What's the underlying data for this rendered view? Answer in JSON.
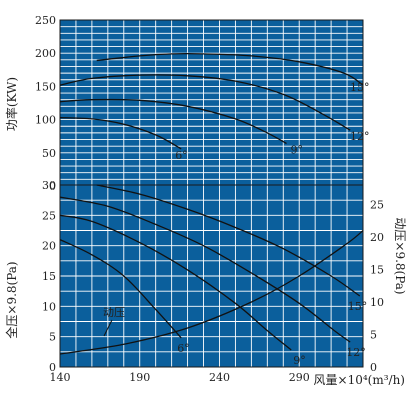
{
  "chart_data": [
    {
      "type": "line",
      "ylabel": "功率(KW)",
      "ylim": [
        0,
        250
      ],
      "yticks": [
        0,
        50,
        100,
        150,
        200,
        250
      ],
      "xlim": [
        140,
        330
      ],
      "grid": true,
      "colors": {
        "plot_bg": "#0b5f9c",
        "grid": "#ffffff",
        "curve": "#111111"
      },
      "series": [
        {
          "name": "15°",
          "x": [
            163,
            190,
            210,
            230,
            260,
            290,
            318,
            333
          ],
          "y": [
            189,
            196,
            199,
            199,
            196,
            187,
            170,
            152
          ]
        },
        {
          "name": "12°",
          "x": [
            140,
            160,
            190,
            220,
            250,
            280,
            305,
            322
          ],
          "y": [
            152,
            162,
            167,
            166,
            158,
            138,
            108,
            84
          ]
        },
        {
          "name": "9°",
          "x": [
            140,
            160,
            190,
            220,
            250,
            270,
            282
          ],
          "y": [
            127,
            130,
            129,
            120,
            101,
            80,
            64
          ]
        },
        {
          "name": "6°",
          "x": [
            140,
            160,
            180,
            200,
            216
          ],
          "y": [
            103,
            101,
            93,
            77,
            56
          ]
        }
      ]
    },
    {
      "type": "line",
      "ylabel": "全压×9.8(Pa)",
      "y2label": "动压×9.8(Pa)",
      "xlabel": "风量×10⁴(m³/h)",
      "xlim": [
        140,
        330
      ],
      "xticks": [
        140,
        190,
        240,
        290
      ],
      "ylim": [
        0,
        30
      ],
      "yticks": [
        0,
        5,
        10,
        15,
        20,
        25,
        30
      ],
      "y2lim": [
        0,
        28
      ],
      "y2ticks": [
        0,
        5,
        10,
        15,
        20,
        25
      ],
      "grid": true,
      "colors": {
        "plot_bg": "#0b5f9c",
        "grid": "#ffffff",
        "curve": "#111111"
      },
      "series": [
        {
          "name": "15°",
          "x": [
            163,
            190,
            220,
            250,
            280,
            310,
            328
          ],
          "y": [
            30,
            28.5,
            26,
            23,
            19.5,
            15,
            11.7
          ]
        },
        {
          "name": "12°",
          "x": [
            140,
            170,
            200,
            230,
            260,
            290,
            312,
            322
          ],
          "y": [
            28,
            26.5,
            23.5,
            20,
            15.5,
            10.5,
            6,
            4.1
          ]
        },
        {
          "name": "9°",
          "x": [
            140,
            160,
            190,
            220,
            250,
            270,
            285
          ],
          "y": [
            25,
            24,
            20.5,
            16,
            10.5,
            6,
            2.8
          ]
        },
        {
          "name": "6°",
          "x": [
            140,
            160,
            180,
            200,
            216
          ],
          "y": [
            21,
            18.5,
            15,
            9.5,
            4.8
          ]
        },
        {
          "name": "动压",
          "axis": "y2",
          "x": [
            140,
            180,
            220,
            260,
            290,
            320,
            330
          ],
          "y": [
            2,
            3.5,
            6,
            10,
            14,
            19,
            21
          ]
        }
      ]
    }
  ]
}
